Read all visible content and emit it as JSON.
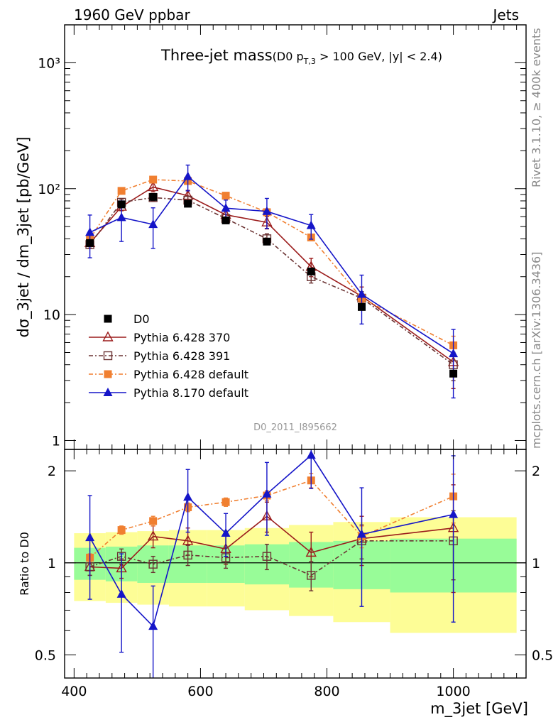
{
  "header": {
    "left": "1960 GeV ppbar",
    "right": "Jets"
  },
  "side_labels": {
    "rivet": "Rivet 3.1.10, ≥ 400k events",
    "mcplots": "mcplots.cern.ch [arXiv:1306.3436]"
  },
  "chart_data": {
    "type": "scatter",
    "title_main": "Three-jet mass",
    "title_sub_pre": "(D0 p",
    "title_sub_sub": "T,3",
    "title_sub_post": " > 100 GeV, |y| < 2.4)",
    "analysis_label": "D0_2011_I895662",
    "xlabel": "m_3jet [GeV]",
    "ylabel": "dσ_3jet / dm_3jet [pb/GeV]",
    "ratio_ylabel": "Ratio to D0",
    "xlim": [
      385,
      1115
    ],
    "ylim": [
      0.85,
      2000
    ],
    "yscale": "log",
    "ratio_ylim": [
      0.42,
      2.35
    ],
    "ratio_yscale": "log",
    "x_ticks": [
      "400",
      "600",
      "800",
      "1000"
    ],
    "y_tick_labels": [
      "1",
      "10",
      "10²",
      "10³"
    ],
    "ratio_tick_labels": [
      "0.5",
      "1",
      "2"
    ],
    "x_bins": [
      [
        400,
        450
      ],
      [
        450,
        500
      ],
      [
        500,
        550
      ],
      [
        550,
        610
      ],
      [
        610,
        670
      ],
      [
        670,
        740
      ],
      [
        740,
        810
      ],
      [
        810,
        900
      ],
      [
        900,
        1100
      ]
    ],
    "x": [
      425,
      475,
      525,
      580,
      640,
      705,
      775,
      855,
      1000
    ],
    "data": {
      "name": "D0",
      "values": [
        37,
        75,
        86,
        76,
        56,
        38,
        22,
        11.5,
        3.4
      ],
      "band_green": [
        0.12,
        0.13,
        0.14,
        0.14,
        0.14,
        0.15,
        0.17,
        0.18,
        0.2
      ],
      "band_yellow": [
        0.25,
        0.26,
        0.27,
        0.28,
        0.28,
        0.3,
        0.33,
        0.36,
        0.41
      ]
    },
    "series": [
      {
        "name": "Pythia 6.428 370",
        "color": "#9b1c1c",
        "marker": "triangle-open",
        "dash": "",
        "values": [
          37,
          72,
          103,
          88,
          62,
          54,
          24,
          14,
          4.2
        ],
        "ratio": [
          0.97,
          0.96,
          1.22,
          1.18,
          1.11,
          1.42,
          1.08,
          1.2,
          1.3
        ],
        "ratio_err": [
          0.06,
          0.07,
          0.1,
          0.12,
          0.12,
          0.16,
          0.18,
          0.22,
          0.5
        ]
      },
      {
        "name": "Pythia 6.428 391",
        "color": "#6b3333",
        "marker": "square-open",
        "dash": "6,3,2,3",
        "values": [
          36,
          78,
          85,
          81,
          58,
          40,
          20,
          13.5,
          4.0
        ],
        "ratio": [
          0.97,
          1.05,
          0.99,
          1.06,
          1.04,
          1.05,
          0.91,
          1.18,
          1.18
        ],
        "ratio_err": [
          0.06,
          0.06,
          0.06,
          0.08,
          0.08,
          0.1,
          0.1,
          0.15,
          0.3
        ]
      },
      {
        "name": "Pythia 6.428 default",
        "color": "#f07f30",
        "marker": "square-filled",
        "dash": "6,3,2,3",
        "values": [
          40,
          96,
          118,
          115,
          88,
          65,
          41,
          13.5,
          5.7
        ],
        "ratio": [
          1.04,
          1.28,
          1.37,
          1.52,
          1.58,
          1.66,
          1.86,
          1.22,
          1.65
        ],
        "ratio_err": [
          0.03,
          0.04,
          0.05,
          0.05,
          0.05,
          0.06,
          0.1,
          0.1,
          0.3
        ]
      },
      {
        "name": "Pythia 8.170 default",
        "color": "#1515c8",
        "marker": "triangle-filled",
        "dash": "",
        "values": [
          45,
          59,
          52,
          125,
          70,
          66,
          51,
          14.5,
          4.9
        ],
        "ratio": [
          1.21,
          0.79,
          0.62,
          1.64,
          1.25,
          1.68,
          2.25,
          1.24,
          1.44
        ],
        "ratio_err": [
          0.45,
          0.28,
          0.22,
          0.38,
          0.2,
          0.45,
          0.5,
          0.52,
          0.8
        ]
      }
    ]
  }
}
